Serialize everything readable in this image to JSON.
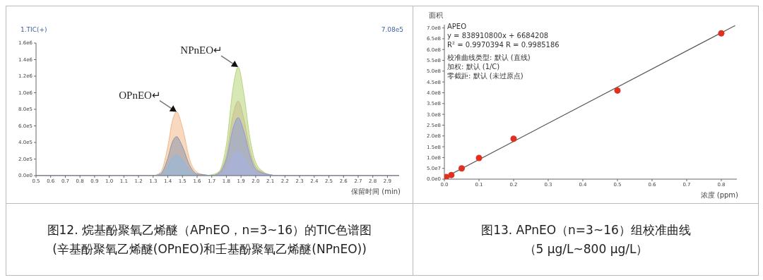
{
  "chart_data": [
    {
      "type": "area",
      "title": "图12. 烷基酚聚氧乙烯醚（APnEO，n=3~16）的TIC色谱图",
      "subtitle": "(辛基酚聚氧乙烯醚(OPnEO)和壬基酚聚氧乙烯醚(NPnEO))",
      "xlabel": "保留时间 (min)",
      "x": [
        0.5,
        1.3,
        1.35,
        1.4,
        1.43,
        1.46,
        1.5,
        1.55,
        1.6,
        1.65,
        1.7,
        1.75,
        1.8,
        1.85,
        1.88,
        1.92,
        1.96,
        2.0,
        2.05,
        2.1,
        2.15,
        2.98
      ],
      "series": [
        {
          "color": "#b8d47a",
          "values": [
            0,
            0,
            0,
            0,
            0,
            0,
            0,
            0,
            0,
            0,
            10000,
            50000,
            370000,
            1110000,
            1310000,
            980000,
            460000,
            160000,
            50000,
            10000,
            0,
            0
          ]
        },
        {
          "color": "#c9c08a",
          "values": [
            0,
            0,
            0,
            0,
            0,
            0,
            0,
            0,
            0,
            0,
            0,
            40000,
            250000,
            770000,
            900000,
            680000,
            320000,
            110000,
            40000,
            10000,
            0,
            0
          ]
        },
        {
          "color": "#f2b88a",
          "values": [
            0,
            0,
            40000,
            350000,
            650000,
            770000,
            580000,
            190000,
            40000,
            10000,
            0,
            0,
            0,
            0,
            0,
            0,
            0,
            0,
            0,
            0,
            0,
            0
          ]
        },
        {
          "color": "#8f9ad8",
          "values": [
            0,
            0,
            0,
            0,
            0,
            0,
            0,
            0,
            0,
            0,
            0,
            30000,
            200000,
            600000,
            700000,
            530000,
            250000,
            80000,
            30000,
            10000,
            0,
            0
          ]
        },
        {
          "color": "#8a96a8",
          "values": [
            0,
            0,
            20000,
            210000,
            400000,
            470000,
            350000,
            120000,
            20000,
            10000,
            0,
            0,
            0,
            0,
            0,
            0,
            0,
            0,
            0,
            0,
            0,
            0
          ]
        },
        {
          "color": "#a8b0e8",
          "values": [
            0,
            0,
            0,
            0,
            0,
            0,
            0,
            0,
            0,
            0,
            0,
            10000,
            80000,
            250000,
            290000,
            220000,
            100000,
            30000,
            10000,
            0,
            0,
            0
          ]
        },
        {
          "color": "#8fb8e0",
          "values": [
            0,
            0,
            10000,
            110000,
            210000,
            250000,
            190000,
            60000,
            10000,
            0,
            0,
            0,
            0,
            0,
            0,
            0,
            0,
            0,
            0,
            0,
            0,
            0
          ]
        }
      ],
      "xlim": [
        0.5,
        2.98
      ],
      "xticks": [
        0.5,
        0.6,
        0.7,
        0.8,
        0.9,
        {
          "value": 1,
          "label": "1.0"
        },
        1.1,
        1.2,
        1.3,
        1.4,
        1.5,
        1.6,
        1.7,
        1.8,
        1.9,
        {
          "value": 2,
          "label": "2.0"
        },
        2.1,
        2.2,
        2.3,
        2.4,
        2.5,
        2.6,
        2.7,
        2.8,
        2.9
      ],
      "ylim": [
        0,
        1600000
      ],
      "yticks": [
        {
          "value": 0,
          "label": "0.0e0"
        },
        {
          "value": 200000,
          "label": "2.0e5"
        },
        {
          "value": 400000,
          "label": "4.0e5"
        },
        {
          "value": 600000,
          "label": "6.0e5"
        },
        {
          "value": 800000,
          "label": "8.0e5"
        },
        {
          "value": 1000000,
          "label": "1.0e6"
        },
        {
          "value": 1200000,
          "label": "1.2e6"
        },
        {
          "value": 1400000,
          "label": "1.4e6"
        },
        {
          "value": 1600000,
          "label": "1.6e6"
        }
      ],
      "annotations": [
        "1.TIC(+)",
        "7.08e5",
        {
          "text": "OPnEO↵",
          "x": 1.46,
          "y": 770000
        },
        {
          "text": "NPnEO↵",
          "x": 1.88,
          "y": 1310000
        }
      ]
    },
    {
      "type": "scatter",
      "title": "图13. APnEO（n=3~16）组校准曲线",
      "subtitle": "（5 μg/L~800 μg/L）",
      "xlabel": "浓度 (ppm)",
      "ylabel": "面积",
      "series": [
        {
          "type": "scatter",
          "marker": "circle",
          "color": "#e03020",
          "x": [
            0.005,
            0.02,
            0.05,
            0.1,
            0.2,
            0.5,
            0.8
          ],
          "values": [
            10000000,
            19000000,
            50000000,
            98000000,
            187000000,
            410000000,
            675000000
          ]
        },
        {
          "type": "line",
          "color": "#555555",
          "x": [
            0,
            0.84
          ],
          "values": [
            7000000,
            711000000
          ]
        }
      ],
      "xlim": [
        0,
        0.845
      ],
      "xticks": [
        {
          "value": 0,
          "label": "0.0"
        },
        0.1,
        0.2,
        0.3,
        0.4,
        0.5,
        0.6,
        0.7,
        0.8
      ],
      "ylim": [
        0,
        715000000
      ],
      "yticks": [
        {
          "value": 0,
          "label": "0.0e0"
        },
        {
          "value": 50000000,
          "label": "5.0e7"
        },
        {
          "value": 100000000,
          "label": "1.0e8"
        },
        {
          "value": 150000000,
          "label": "1.5e8"
        },
        {
          "value": 200000000,
          "label": "2.0e8"
        },
        {
          "value": 250000000,
          "label": "2.5e8"
        },
        {
          "value": 300000000,
          "label": "3.0e8"
        },
        {
          "value": 350000000,
          "label": "3.5e8"
        },
        {
          "value": 400000000,
          "label": "4.0e8"
        },
        {
          "value": 450000000,
          "label": "4.5e8"
        },
        {
          "value": 500000000,
          "label": "5.0e8"
        },
        {
          "value": 550000000,
          "label": "5.5e8"
        },
        {
          "value": 600000000,
          "label": "6.0e8"
        },
        {
          "value": 650000000,
          "label": "6.5e8"
        },
        {
          "value": 700000000,
          "label": "7.0e8"
        }
      ],
      "annotations": [
        "APEO",
        "y = 838910800x + 6684208",
        "R² = 0.9970394    R = 0.9985186",
        "校准曲线类型: 默认 (直线)",
        "加权: 默认 (1/C)",
        "零截距: 默认 (未过原点)"
      ]
    }
  ]
}
